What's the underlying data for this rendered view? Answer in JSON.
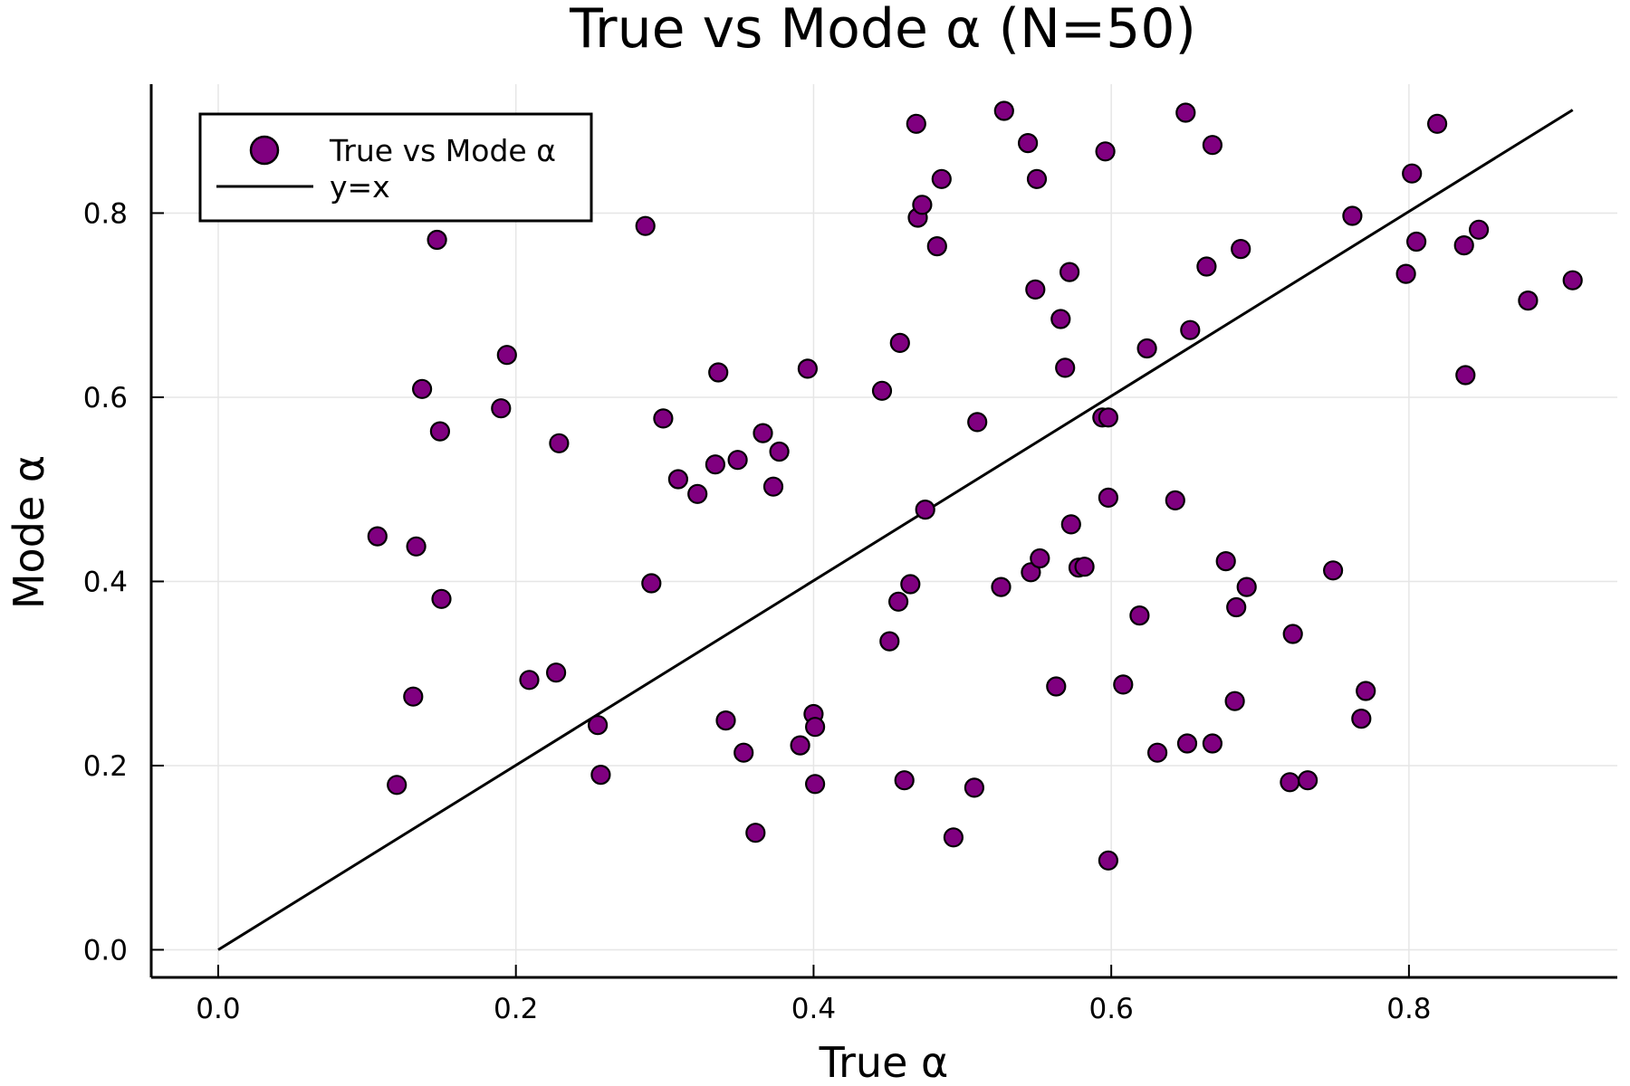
{
  "chart_data": {
    "type": "scatter",
    "title": "True vs Mode α (N=50)",
    "xlabel": "True α",
    "ylabel": "Mode α",
    "xlim": [
      -0.045,
      0.94
    ],
    "ylim": [
      -0.03,
      0.94
    ],
    "xticks": [
      0.0,
      0.2,
      0.4,
      0.6,
      0.8
    ],
    "yticks": [
      0.0,
      0.2,
      0.4,
      0.6,
      0.8
    ],
    "xtick_labels": [
      "0.0",
      "0.2",
      "0.4",
      "0.6",
      "0.8"
    ],
    "ytick_labels": [
      "0.0",
      "0.2",
      "0.4",
      "0.6",
      "0.8"
    ],
    "grid": true,
    "legend_position": "top-left",
    "series": [
      {
        "name": "True vs Mode α",
        "kind": "scatter",
        "color": "#800080",
        "points": [
          [
            0.107,
            0.449
          ],
          [
            0.12,
            0.179
          ],
          [
            0.131,
            0.275
          ],
          [
            0.133,
            0.438
          ],
          [
            0.137,
            0.609
          ],
          [
            0.147,
            0.771
          ],
          [
            0.149,
            0.563
          ],
          [
            0.15,
            0.381
          ],
          [
            0.19,
            0.588
          ],
          [
            0.194,
            0.646
          ],
          [
            0.209,
            0.293
          ],
          [
            0.227,
            0.301
          ],
          [
            0.229,
            0.55
          ],
          [
            0.255,
            0.244
          ],
          [
            0.257,
            0.19
          ],
          [
            0.287,
            0.786
          ],
          [
            0.291,
            0.398
          ],
          [
            0.299,
            0.577
          ],
          [
            0.309,
            0.511
          ],
          [
            0.322,
            0.495
          ],
          [
            0.334,
            0.527
          ],
          [
            0.336,
            0.627
          ],
          [
            0.341,
            0.249
          ],
          [
            0.349,
            0.532
          ],
          [
            0.353,
            0.214
          ],
          [
            0.361,
            0.127
          ],
          [
            0.366,
            0.561
          ],
          [
            0.373,
            0.503
          ],
          [
            0.377,
            0.541
          ],
          [
            0.391,
            0.222
          ],
          [
            0.396,
            0.631
          ],
          [
            0.4,
            0.256
          ],
          [
            0.401,
            0.242
          ],
          [
            0.401,
            0.18
          ],
          [
            0.446,
            0.607
          ],
          [
            0.451,
            0.335
          ],
          [
            0.457,
            0.378
          ],
          [
            0.458,
            0.659
          ],
          [
            0.461,
            0.184
          ],
          [
            0.465,
            0.397
          ],
          [
            0.469,
            0.897
          ],
          [
            0.47,
            0.795
          ],
          [
            0.473,
            0.809
          ],
          [
            0.475,
            0.478
          ],
          [
            0.483,
            0.764
          ],
          [
            0.486,
            0.837
          ],
          [
            0.494,
            0.122
          ],
          [
            0.508,
            0.176
          ],
          [
            0.51,
            0.573
          ],
          [
            0.526,
            0.394
          ],
          [
            0.528,
            0.911
          ],
          [
            0.544,
            0.876
          ],
          [
            0.546,
            0.41
          ],
          [
            0.549,
            0.717
          ],
          [
            0.55,
            0.837
          ],
          [
            0.552,
            0.425
          ],
          [
            0.563,
            0.286
          ],
          [
            0.566,
            0.685
          ],
          [
            0.569,
            0.632
          ],
          [
            0.572,
            0.736
          ],
          [
            0.573,
            0.462
          ],
          [
            0.578,
            0.415
          ],
          [
            0.582,
            0.416
          ],
          [
            0.594,
            0.578
          ],
          [
            0.596,
            0.867
          ],
          [
            0.598,
            0.578
          ],
          [
            0.598,
            0.491
          ],
          [
            0.598,
            0.097
          ],
          [
            0.619,
            0.363
          ],
          [
            0.624,
            0.653
          ],
          [
            0.608,
            0.288
          ],
          [
            0.631,
            0.214
          ],
          [
            0.643,
            0.488
          ],
          [
            0.65,
            0.909
          ],
          [
            0.651,
            0.224
          ],
          [
            0.653,
            0.673
          ],
          [
            0.664,
            0.742
          ],
          [
            0.668,
            0.874
          ],
          [
            0.668,
            0.224
          ],
          [
            0.677,
            0.422
          ],
          [
            0.683,
            0.27
          ],
          [
            0.684,
            0.372
          ],
          [
            0.687,
            0.761
          ],
          [
            0.691,
            0.394
          ],
          [
            0.72,
            0.182
          ],
          [
            0.722,
            0.343
          ],
          [
            0.732,
            0.184
          ],
          [
            0.749,
            0.412
          ],
          [
            0.762,
            0.797
          ],
          [
            0.768,
            0.251
          ],
          [
            0.771,
            0.281
          ],
          [
            0.798,
            0.734
          ],
          [
            0.802,
            0.843
          ],
          [
            0.805,
            0.769
          ],
          [
            0.819,
            0.897
          ],
          [
            0.837,
            0.765
          ],
          [
            0.838,
            0.624
          ],
          [
            0.847,
            0.782
          ],
          [
            0.88,
            0.705
          ],
          [
            0.91,
            0.727
          ]
        ]
      },
      {
        "name": "y=x",
        "kind": "line",
        "color": "#000000",
        "points": [
          [
            0.0,
            0.0
          ],
          [
            0.91,
            0.912
          ]
        ]
      }
    ]
  }
}
